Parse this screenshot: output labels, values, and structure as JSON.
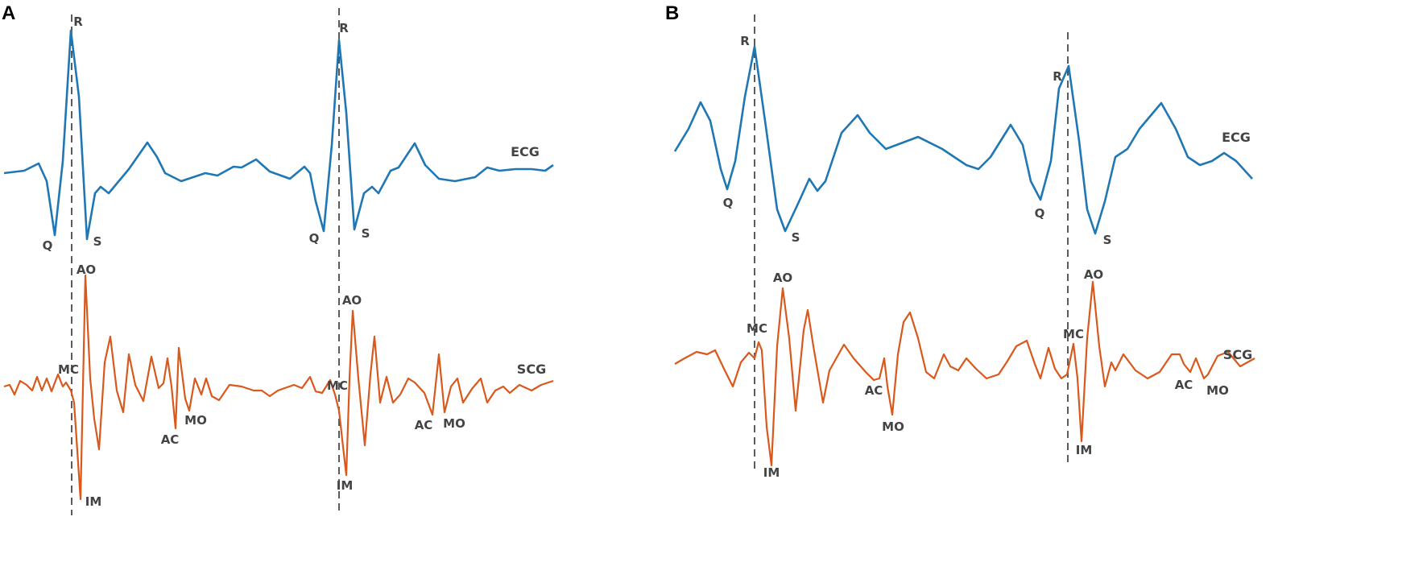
{
  "panels": [
    {
      "label": "A",
      "ecg_label": "ECG",
      "scg_label": "SCG",
      "ecg_points": [
        "R",
        "Q",
        "S",
        "R",
        "Q",
        "S"
      ],
      "scg_points": [
        "AO",
        "MC",
        "AC",
        "MO",
        "IM",
        "AO",
        "MC",
        "AC",
        "MO",
        "IM"
      ]
    },
    {
      "label": "B",
      "ecg_label": "ECG",
      "scg_label": "SCG",
      "ecg_points": [
        "R",
        "Q",
        "S",
        "R",
        "Q",
        "S"
      ],
      "scg_points": [
        "AO",
        "MC",
        "IM",
        "AC",
        "MO",
        "AO",
        "MC",
        "IM",
        "AC",
        "MO"
      ]
    }
  ],
  "colors": {
    "ecg": "#1f77b4",
    "scg": "#d9581c"
  }
}
